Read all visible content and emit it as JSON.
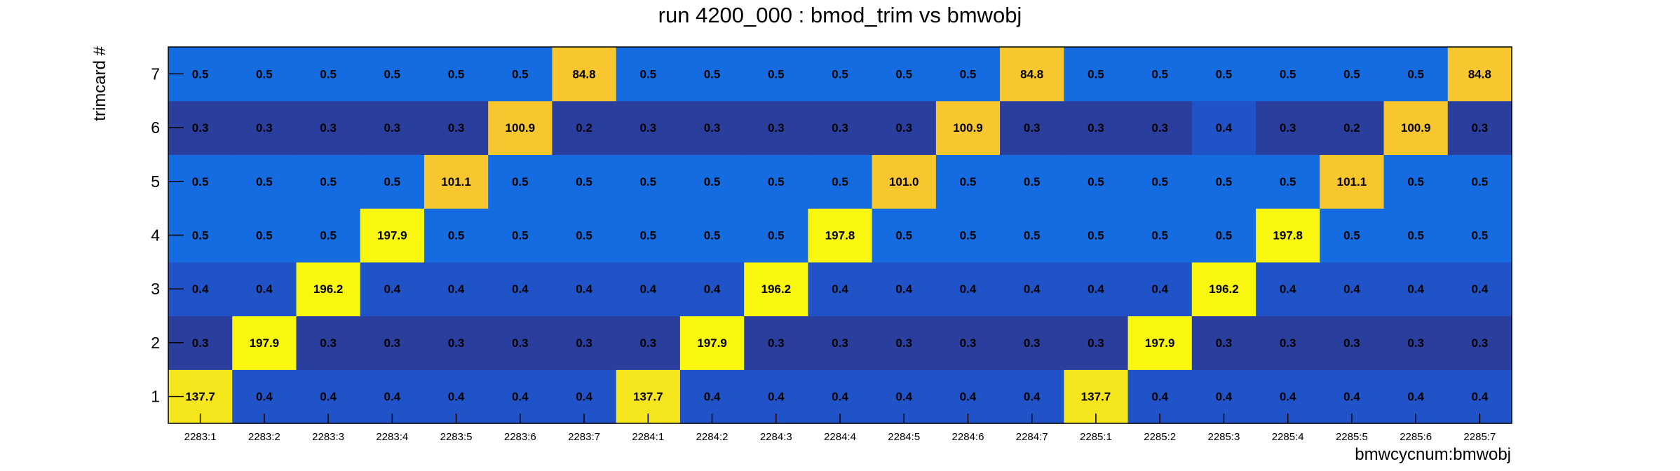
{
  "chart_data": {
    "type": "heatmap",
    "title": "run 4200_000 : bmod_trim vs bmwobj",
    "xlabel": "bmwcycnum:bmwobj",
    "ylabel": "trimcard #",
    "x_categories": [
      "2283:1",
      "2283:2",
      "2283:3",
      "2283:4",
      "2283:5",
      "2283:6",
      "2283:7",
      "2284:1",
      "2284:2",
      "2284:3",
      "2284:4",
      "2284:5",
      "2284:6",
      "2284:7",
      "2285:1",
      "2285:2",
      "2285:3",
      "2285:4",
      "2285:5",
      "2285:6",
      "2285:7"
    ],
    "y_categories": [
      "1",
      "2",
      "3",
      "4",
      "5",
      "6",
      "7"
    ],
    "value_labels": [
      [
        "137.7",
        "0.4",
        "0.4",
        "0.4",
        "0.4",
        "0.4",
        "0.4",
        "137.7",
        "0.4",
        "0.4",
        "0.4",
        "0.4",
        "0.4",
        "0.4",
        "137.7",
        "0.4",
        "0.4",
        "0.4",
        "0.4",
        "0.4",
        "0.4"
      ],
      [
        "0.3",
        "197.9",
        "0.3",
        "0.3",
        "0.3",
        "0.3",
        "0.3",
        "0.3",
        "197.9",
        "0.3",
        "0.3",
        "0.3",
        "0.3",
        "0.3",
        "0.3",
        "197.9",
        "0.3",
        "0.3",
        "0.3",
        "0.3",
        "0.3"
      ],
      [
        "0.4",
        "0.4",
        "196.2",
        "0.4",
        "0.4",
        "0.4",
        "0.4",
        "0.4",
        "0.4",
        "196.2",
        "0.4",
        "0.4",
        "0.4",
        "0.4",
        "0.4",
        "0.4",
        "196.2",
        "0.4",
        "0.4",
        "0.4",
        "0.4"
      ],
      [
        "0.5",
        "0.5",
        "0.5",
        "197.9",
        "0.5",
        "0.5",
        "0.5",
        "0.5",
        "0.5",
        "0.5",
        "197.8",
        "0.5",
        "0.5",
        "0.5",
        "0.5",
        "0.5",
        "0.5",
        "197.8",
        "0.5",
        "0.5",
        "0.5"
      ],
      [
        "0.5",
        "0.5",
        "0.5",
        "0.5",
        "101.1",
        "0.5",
        "0.5",
        "0.5",
        "0.5",
        "0.5",
        "0.5",
        "101.0",
        "0.5",
        "0.5",
        "0.5",
        "0.5",
        "0.5",
        "0.5",
        "101.1",
        "0.5",
        "0.5"
      ],
      [
        "0.3",
        "0.3",
        "0.3",
        "0.3",
        "0.3",
        "100.9",
        "0.2",
        "0.3",
        "0.3",
        "0.3",
        "0.3",
        "0.3",
        "100.9",
        "0.3",
        "0.3",
        "0.3",
        "0.4",
        "0.3",
        "0.2",
        "100.9",
        "0.3"
      ],
      [
        "0.5",
        "0.5",
        "0.5",
        "0.5",
        "0.5",
        "0.5",
        "84.8",
        "0.5",
        "0.5",
        "0.5",
        "0.5",
        "0.5",
        "0.5",
        "84.8",
        "0.5",
        "0.5",
        "0.5",
        "0.5",
        "0.5",
        "0.5",
        "84.8"
      ]
    ],
    "grid": false,
    "legend": "none"
  },
  "palette": {
    "navy": "#2a3e9e",
    "blue": "#1f53c7",
    "blue_mid": "#165fd8",
    "blue_light": "#146ce0",
    "orange": "#f8c62f",
    "yellow_mid": "#f5e51c",
    "yellow": "#f9f70f",
    "frame": "#000000"
  }
}
